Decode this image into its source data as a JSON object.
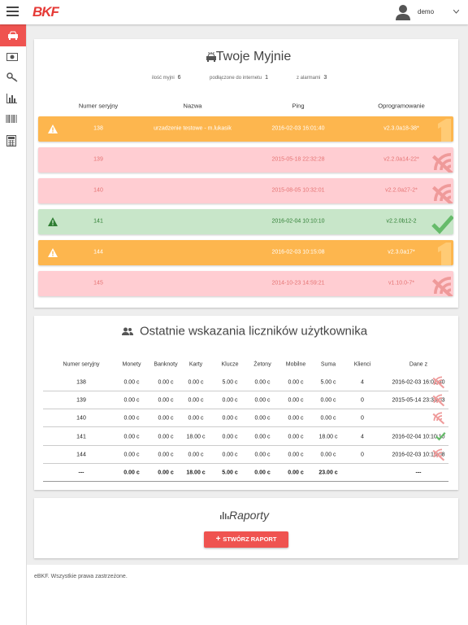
{
  "header": {
    "logo": "BKF",
    "user": "demo"
  },
  "machines": {
    "title": "Twoje Myjnie",
    "stats": [
      {
        "label": "ilość myjni",
        "value": "6"
      },
      {
        "label": "podłączone do internetu",
        "value": "1"
      },
      {
        "label": "z alarmami",
        "value": "3"
      }
    ],
    "columns": [
      "Numer seryjny",
      "Nazwa",
      "Ping",
      "Oprogramowanie"
    ],
    "rows": [
      {
        "status": "warning",
        "serial": "138",
        "name": "urzadzenie testowe - m.lukasik",
        "ping": "2016-02-03 16:01:40",
        "software": "v2.3.0a18-38*"
      },
      {
        "status": "offline",
        "serial": "139",
        "name": null,
        "ping": "2015-05-18 22:32:28",
        "software": "v2.2.0a14-22*"
      },
      {
        "status": "offline",
        "serial": "140",
        "name": null,
        "ping": "2015-08-05 10:32:01",
        "software": "v2.2.0a27-2*"
      },
      {
        "status": "ok",
        "serial": "141",
        "name": null,
        "ping": "2016-02-04 10:10:10",
        "software": "v2.2.0b12-2"
      },
      {
        "status": "warning",
        "serial": "144",
        "name": null,
        "ping": "2016-02-03 10:15:08",
        "software": "v2.3.0a17*"
      },
      {
        "status": "offline",
        "serial": "145",
        "name": null,
        "ping": "2014-10-23 14:59:21",
        "software": "v1.10.0-7*"
      }
    ]
  },
  "counters": {
    "title": "Ostatnie wskazania liczników użytkownika",
    "columns": [
      "Numer seryjny",
      "Monety",
      "Banknoty",
      "Karty",
      "Klucze",
      "Żetony",
      "Mobilne",
      "Suma",
      "Klienci",
      "Dane z"
    ],
    "rows": [
      {
        "status": "offline",
        "cells": [
          "138",
          "0.00 c",
          "0.00 c",
          "0.00 c",
          "5.00 c",
          "0.00 c",
          "0.00 c",
          "5.00 c",
          "4",
          "2016-02-03 16:01:40"
        ]
      },
      {
        "status": "offline",
        "cells": [
          "139",
          "0.00 c",
          "0.00 c",
          "0.00 c",
          "0.00 c",
          "0.00 c",
          "0.00 c",
          "0.00 c",
          "0",
          "2015-05-14 23:33:03"
        ]
      },
      {
        "status": "offline",
        "cells": [
          "140",
          "0.00 c",
          "0.00 c",
          "0.00 c",
          "0.00 c",
          "0.00 c",
          "0.00 c",
          "0.00 c",
          "0",
          null
        ]
      },
      {
        "status": "ok",
        "cells": [
          "141",
          "0.00 c",
          "0.00 c",
          "18.00 c",
          "0.00 c",
          "0.00 c",
          "0.00 c",
          "18.00 c",
          "4",
          "2016-02-04 10:10:10"
        ]
      },
      {
        "status": "offline",
        "cells": [
          "144",
          "0.00 c",
          "0.00 c",
          "0.00 c",
          "0.00 c",
          "0.00 c",
          "0.00 c",
          "0.00 c",
          "0",
          "2016-02-03 10:15:08"
        ]
      }
    ],
    "totals": [
      "---",
      "0.00 c",
      "0.00 c",
      "18.00 c",
      "5.00 c",
      "0.00 c",
      "0.00 c",
      "23.00 c",
      null,
      "---"
    ]
  },
  "reports": {
    "title": "Raporty",
    "button": "STWÓRZ RAPORT"
  },
  "footer": "eBKF. Wszystkie prawa zastrzeżone."
}
